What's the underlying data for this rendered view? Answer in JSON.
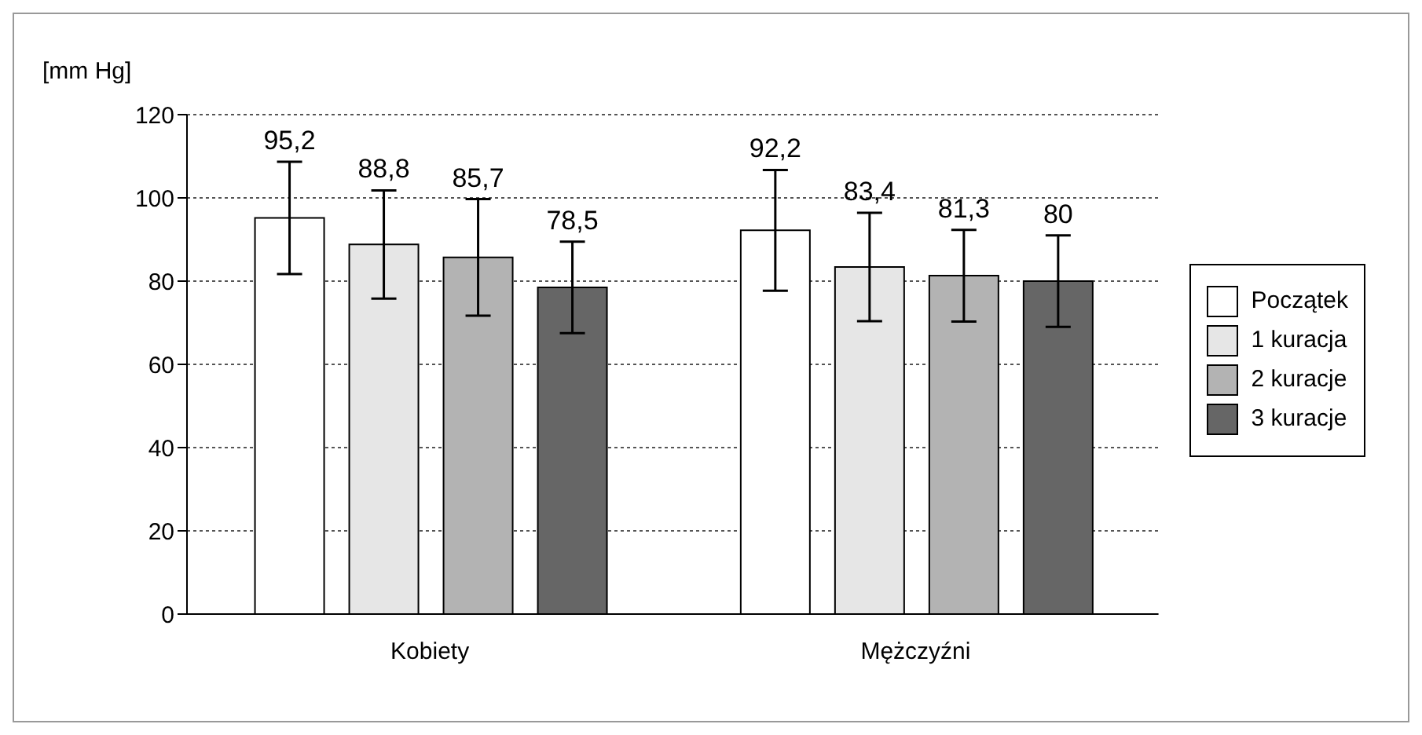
{
  "chart_data": {
    "type": "bar",
    "ylabel": "[mm Hg]",
    "categories": [
      "Kobiety",
      "Mężczyźni"
    ],
    "series": [
      {
        "name": "Początek",
        "color": "#ffffff",
        "values": [
          95.2,
          92.2
        ],
        "errors": [
          13.5,
          14.5
        ],
        "value_labels": [
          "95,2",
          "92,2"
        ]
      },
      {
        "name": "1 kuracja",
        "color": "#e6e6e6",
        "values": [
          88.8,
          83.4
        ],
        "errors": [
          13,
          13
        ],
        "value_labels": [
          "88,8",
          "83,4"
        ]
      },
      {
        "name": "2 kuracje",
        "color": "#b3b3b3",
        "values": [
          85.7,
          81.3
        ],
        "errors": [
          14,
          11
        ],
        "value_labels": [
          "85,7",
          "81,3"
        ]
      },
      {
        "name": "3 kuracje",
        "color": "#666666",
        "values": [
          78.5,
          80
        ],
        "errors": [
          11,
          11
        ],
        "value_labels": [
          "78,5",
          "80"
        ]
      }
    ],
    "ylim": [
      0,
      120
    ],
    "yticks": [
      0,
      20,
      40,
      60,
      80,
      100,
      120
    ],
    "grid": "y",
    "legend": "right"
  }
}
